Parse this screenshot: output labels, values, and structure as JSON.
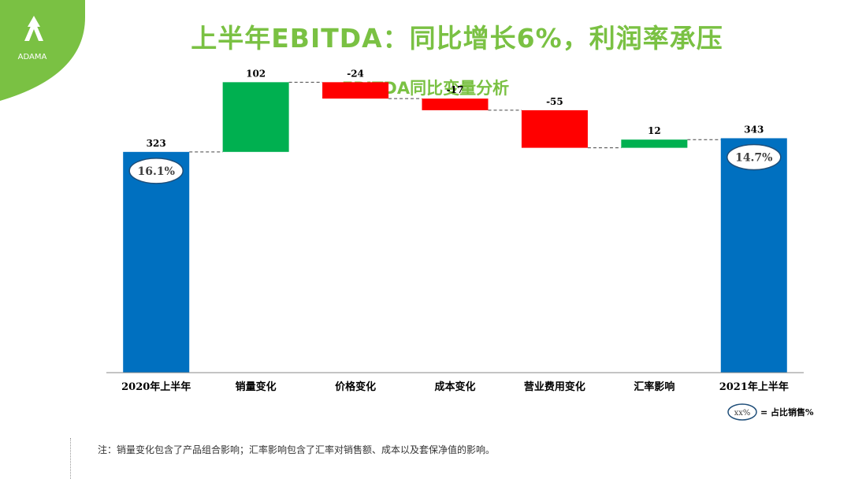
{
  "brand": {
    "logo_text": "ADAMA",
    "color": "#7ac143"
  },
  "main_title": "上半年EBITDA：同比增长6%，利润率承压",
  "chart_data": {
    "type": "waterfall",
    "title": "EBITDA同比变量分析",
    "categories": [
      "2020年上半年",
      "销量变化",
      "价格变化",
      "成本变化",
      "营业费用变化",
      "汇率影响",
      "2021年上半年"
    ],
    "kinds": [
      "total",
      "delta",
      "delta",
      "delta",
      "delta",
      "delta",
      "total"
    ],
    "values": [
      323,
      102,
      -24,
      -17,
      -55,
      12,
      343
    ],
    "labels": [
      "323",
      "102",
      "-24",
      "-17",
      "-55",
      "12",
      "343"
    ],
    "margin_badges": {
      "0": "16.1%",
      "6": "14.7%"
    },
    "legend": {
      "marker": "xx%",
      "text": "= 占比销售%"
    },
    "colors": {
      "total": "#0070c0",
      "increase": "#00b050",
      "decrease": "#ff0000",
      "badge_border": "#1f4e79"
    },
    "ylim": [
      0,
      430
    ],
    "grid": false
  },
  "footnote": "注：销量变化包含了产品组合影响；汇率影响包含了汇率对销售额、成本以及套保净值的影响。"
}
